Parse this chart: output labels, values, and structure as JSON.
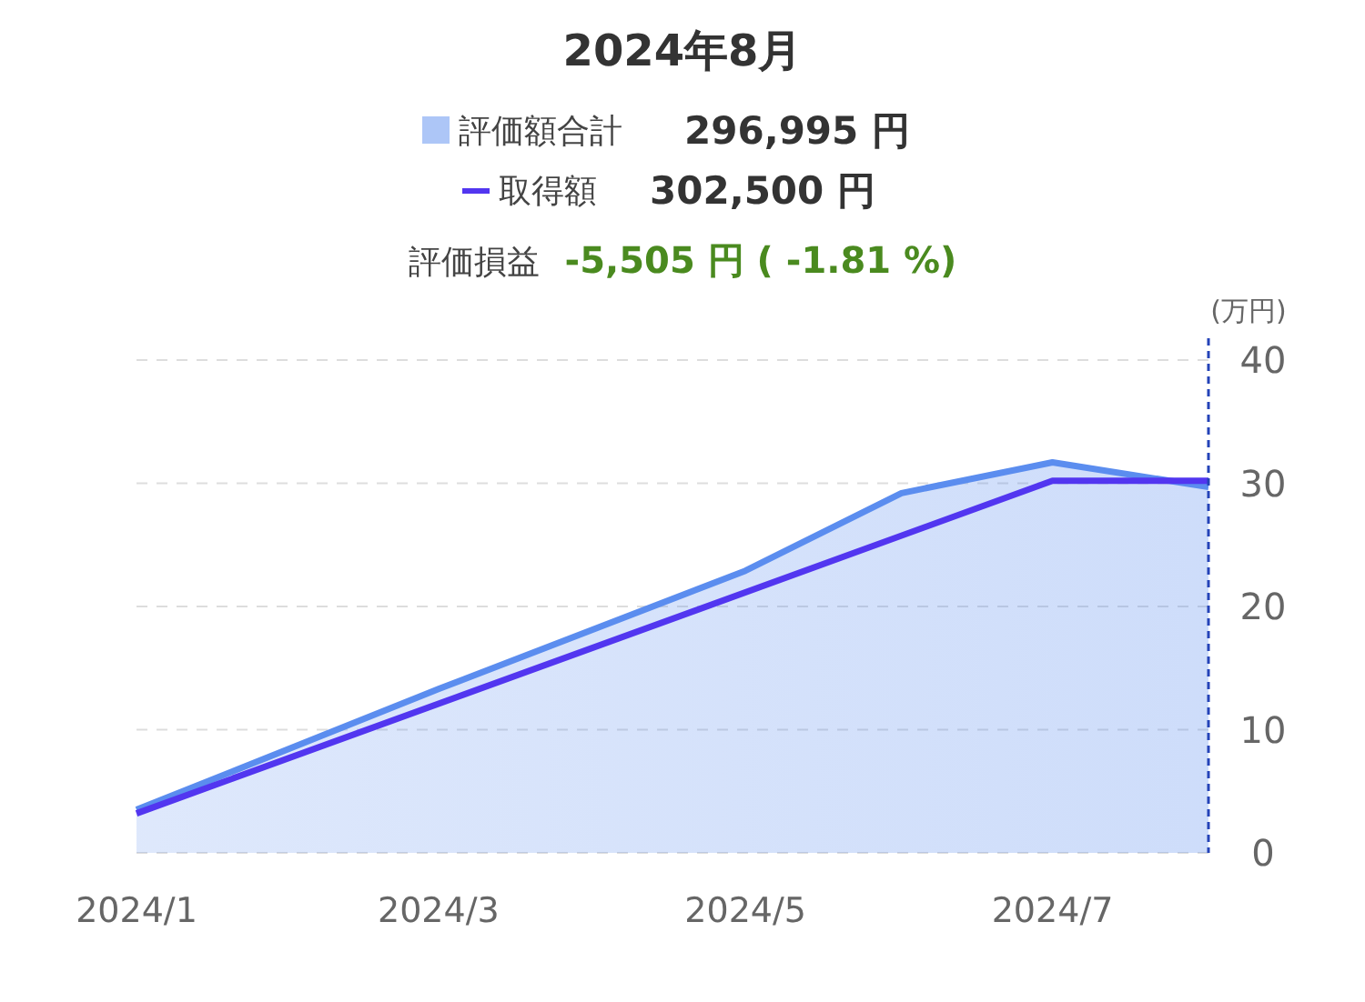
{
  "chart_data": {
    "type": "area",
    "title": "2024年8月",
    "ylabel": "(万円)",
    "x": [
      "2024-01",
      "2024-03",
      "2024-05",
      "2024-06",
      "2024-07",
      "2024-08"
    ],
    "series": [
      {
        "name": "評価額合計",
        "color": "#5b8def",
        "values": [
          3.5,
          13.3,
          22.9,
          29.2,
          31.7,
          29.7
        ]
      },
      {
        "name": "取得額",
        "type": "line",
        "color": "#5236f0",
        "x": [
          "2024-01",
          "2024-07",
          "2024-08"
        ],
        "values": [
          3.2,
          30.2,
          30.2
        ]
      }
    ],
    "xlim": [
      "2024-01",
      "2024-08"
    ],
    "xticks": [
      {
        "value": "2024-01",
        "label": "2024/1"
      },
      {
        "value": "2024-03",
        "label": "2024/3"
      },
      {
        "value": "2024-05",
        "label": "2024/5"
      },
      {
        "value": "2024-07",
        "label": "2024/7"
      }
    ],
    "ylim": [
      0,
      40
    ],
    "yticks": [
      0,
      10,
      20,
      30,
      40
    ],
    "grid": "y",
    "legend": "top",
    "ref_lines": [
      {
        "axis": "x",
        "value": "2024-08",
        "color": "#2443b8",
        "line_style": "dashed"
      }
    ],
    "annotations": [
      "296,995 円",
      "302,500 円",
      "評価損益",
      "-5,505 円 ( -1.81 %)"
    ]
  }
}
